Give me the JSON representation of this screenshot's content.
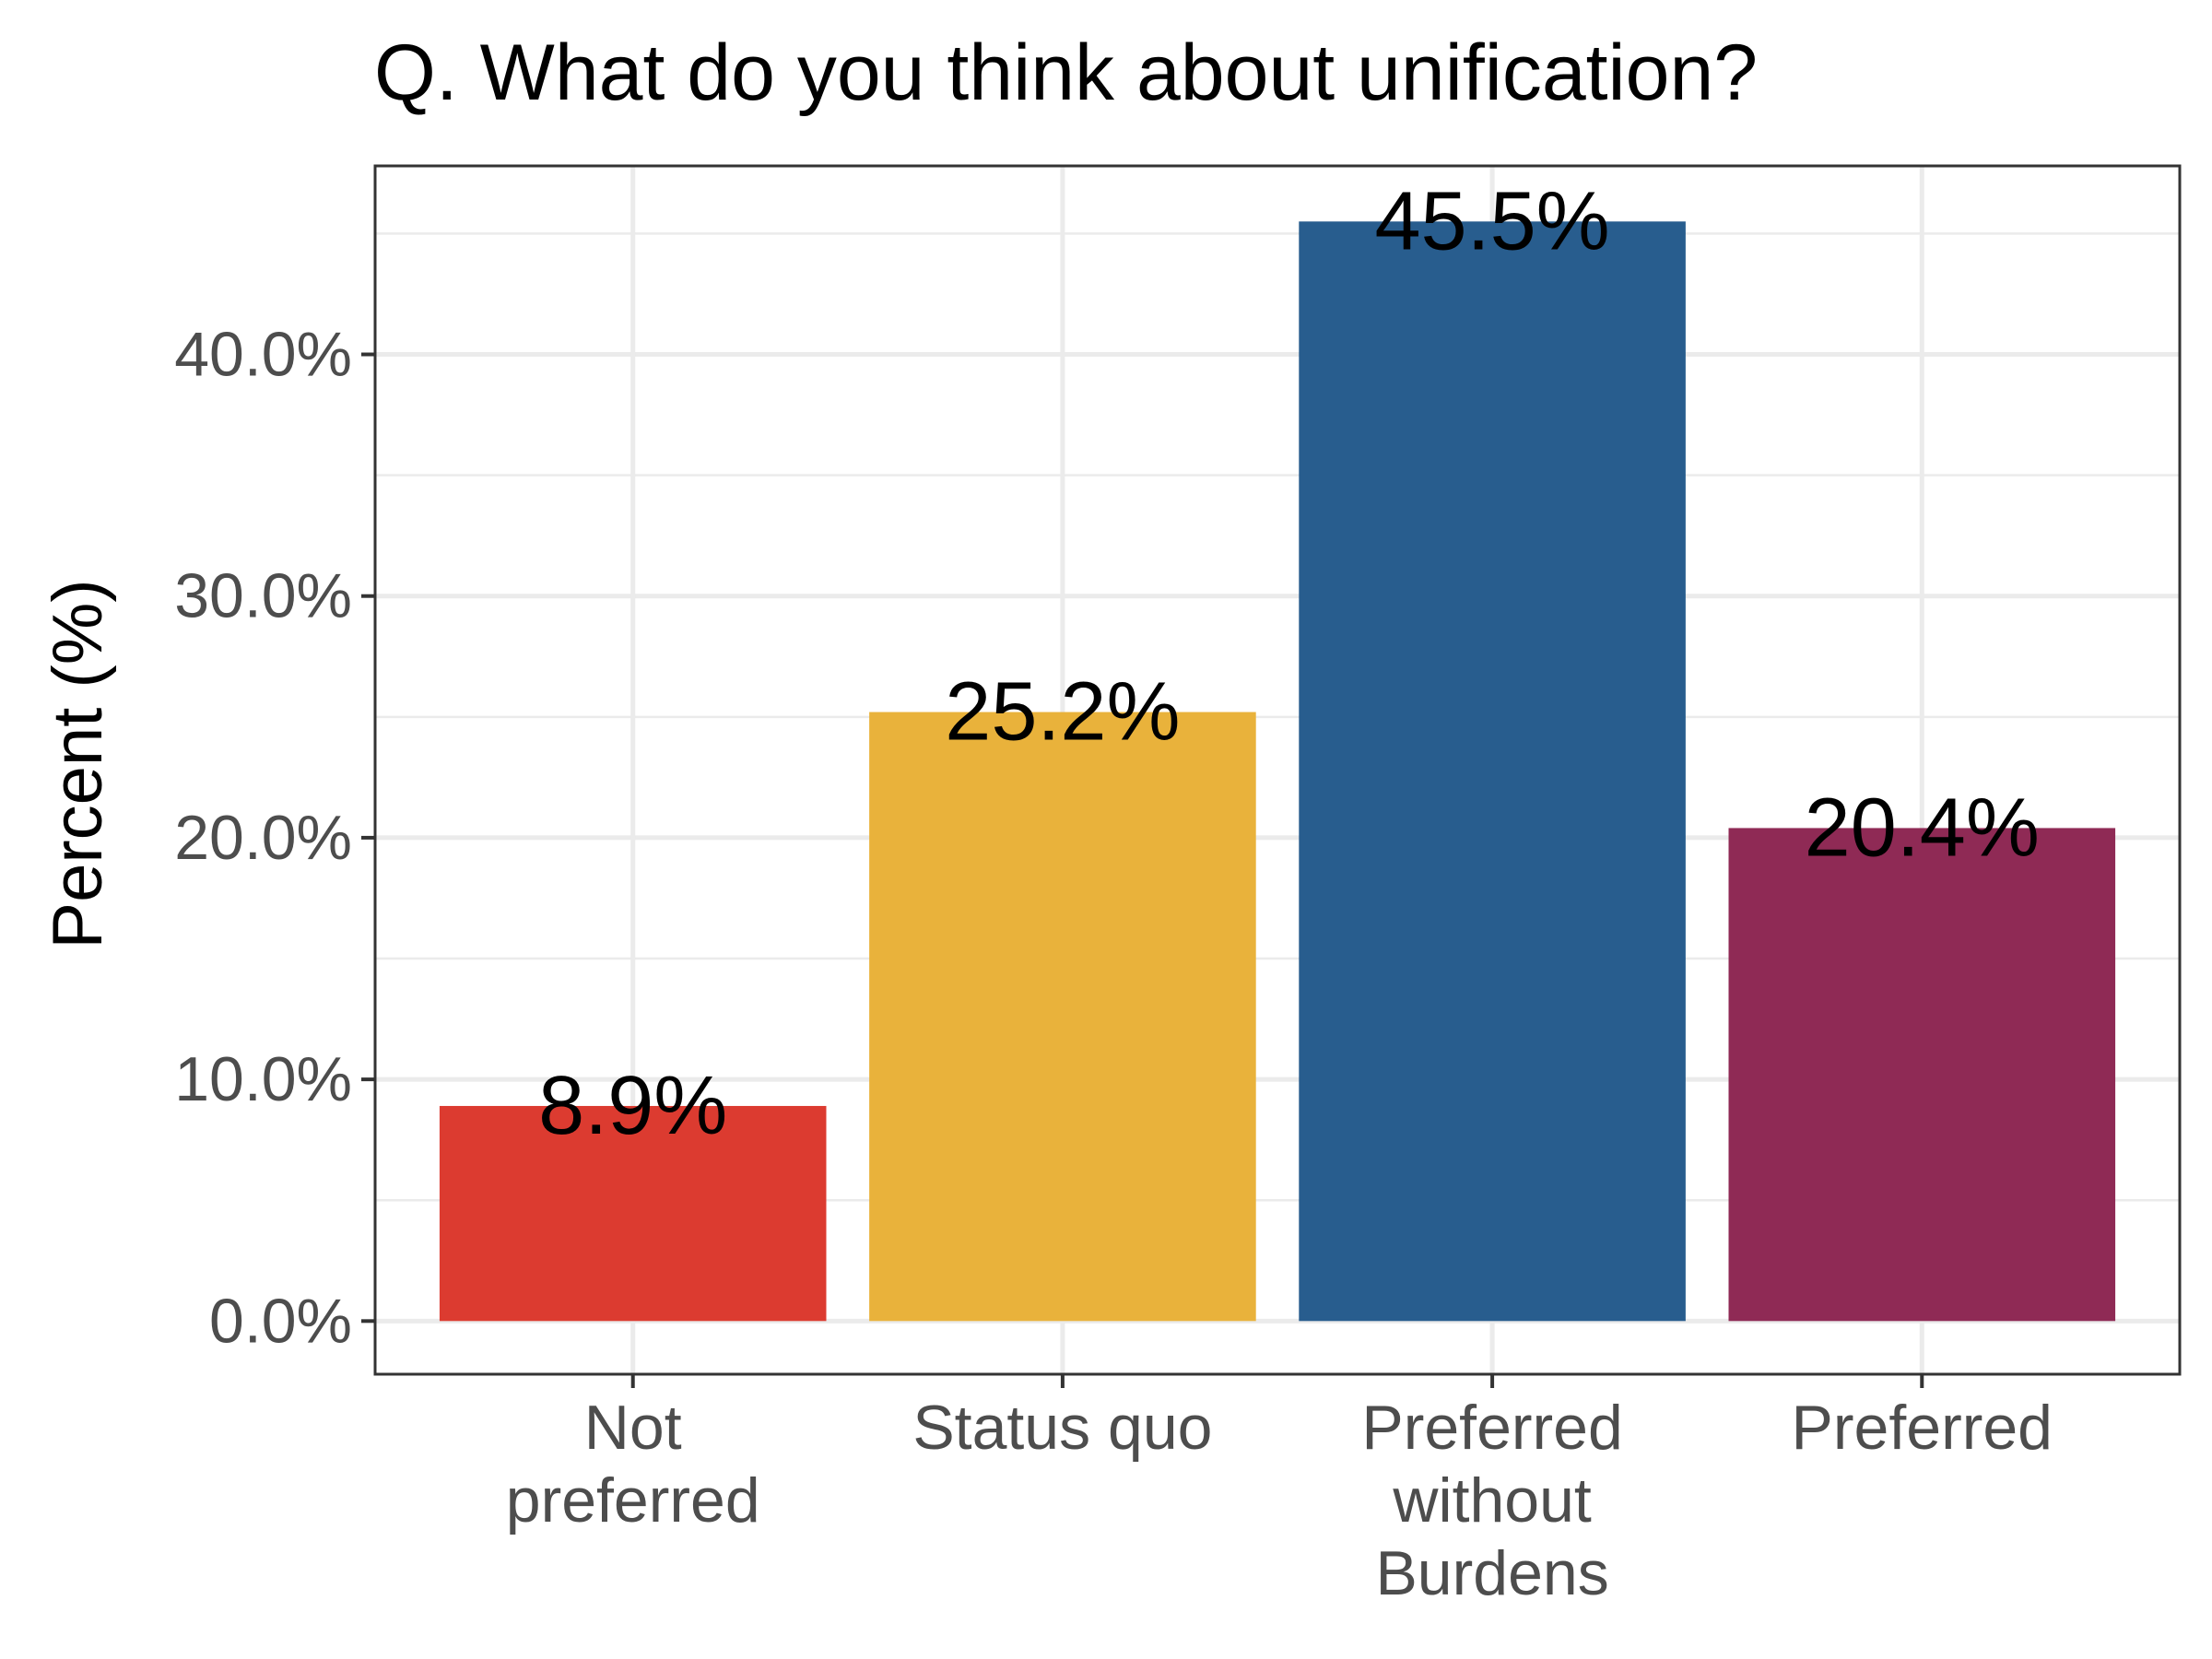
{
  "chart_data": {
    "type": "bar",
    "title": "Q. What do you think about unification?",
    "xlabel": "",
    "ylabel": "Percent (%)",
    "categories": [
      [
        "Not",
        "preferred"
      ],
      [
        "Status quo"
      ],
      [
        "Preferred",
        "without",
        "Burdens"
      ],
      [
        "Preferred"
      ]
    ],
    "values": [
      8.9,
      25.2,
      45.5,
      20.4
    ],
    "value_labels": [
      "8.9%",
      "25.2%",
      "45.5%",
      "20.4%"
    ],
    "colors": [
      "#dc3b30",
      "#e9b23b",
      "#285d8e",
      "#8f2a55"
    ],
    "ylim": [
      -2.2,
      47.8
    ],
    "yticks": [
      0,
      10,
      20,
      30,
      40
    ],
    "ytick_labels": [
      "0.0%",
      "10.0%",
      "20.0%",
      "30.0%",
      "40.0%"
    ],
    "grid": true,
    "legend": "none"
  }
}
